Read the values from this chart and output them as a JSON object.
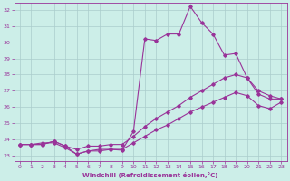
{
  "xlabel": "Windchill (Refroidissement éolien,°C)",
  "xlim": [
    -0.5,
    23.5
  ],
  "ylim": [
    22.7,
    32.4
  ],
  "yticks": [
    23,
    24,
    25,
    26,
    27,
    28,
    29,
    30,
    31,
    32
  ],
  "xticks": [
    0,
    1,
    2,
    3,
    4,
    5,
    6,
    7,
    8,
    9,
    10,
    11,
    12,
    13,
    14,
    15,
    16,
    17,
    18,
    19,
    20,
    21,
    22,
    23
  ],
  "bg_color": "#cceee8",
  "grid_color": "#aacccc",
  "line_color": "#993399",
  "line1_x": [
    0,
    1,
    2,
    3,
    4,
    5,
    6,
    7,
    8,
    9,
    10,
    11,
    12,
    13,
    14,
    15,
    16,
    17,
    18,
    19,
    20,
    21,
    22,
    23
  ],
  "line1_y": [
    23.7,
    23.7,
    23.8,
    23.8,
    23.5,
    23.1,
    23.3,
    23.3,
    23.4,
    23.35,
    24.5,
    30.2,
    30.1,
    30.5,
    30.5,
    32.2,
    31.2,
    30.5,
    29.2,
    29.3,
    27.8,
    26.8,
    26.5,
    26.5
  ],
  "line2_x": [
    0,
    1,
    2,
    3,
    4,
    5,
    6,
    7,
    8,
    9,
    10,
    11,
    12,
    13,
    14,
    15,
    16,
    17,
    18,
    19,
    20,
    21,
    22,
    23
  ],
  "line2_y": [
    23.7,
    23.7,
    23.7,
    23.9,
    23.6,
    23.4,
    23.6,
    23.6,
    23.7,
    23.7,
    24.2,
    24.8,
    25.3,
    25.7,
    26.1,
    26.6,
    27.0,
    27.4,
    27.8,
    28.0,
    27.8,
    27.0,
    26.7,
    26.5
  ],
  "line3_x": [
    0,
    1,
    2,
    3,
    4,
    5,
    6,
    7,
    8,
    9,
    10,
    11,
    12,
    13,
    14,
    15,
    16,
    17,
    18,
    19,
    20,
    21,
    22,
    23
  ],
  "line3_y": [
    23.7,
    23.7,
    23.7,
    23.9,
    23.6,
    23.1,
    23.3,
    23.4,
    23.4,
    23.4,
    23.8,
    24.2,
    24.6,
    24.9,
    25.3,
    25.7,
    26.0,
    26.3,
    26.6,
    26.9,
    26.7,
    26.1,
    25.9,
    26.3
  ]
}
